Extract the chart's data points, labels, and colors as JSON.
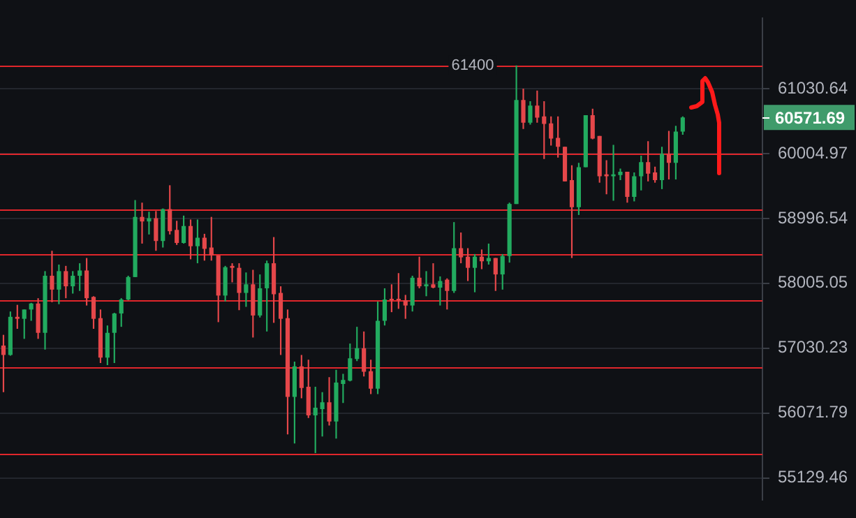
{
  "chart_data": {
    "type": "candlestick",
    "categories": [
      null,
      null,
      null,
      null,
      null,
      null,
      null,
      null,
      null,
      null,
      null,
      null,
      null,
      null,
      null,
      null,
      null,
      null,
      null,
      null,
      null,
      null,
      null,
      null,
      null,
      null,
      null,
      null,
      null,
      null,
      null,
      null,
      null,
      null,
      null,
      null,
      null,
      null,
      null,
      null,
      null,
      null,
      null,
      null,
      null,
      null,
      null,
      null,
      null,
      null,
      null,
      null,
      null,
      null,
      null,
      null,
      null,
      null,
      null,
      null,
      null,
      null,
      null,
      null,
      null,
      null,
      null,
      null,
      null,
      null,
      null,
      null,
      null,
      null,
      null,
      null,
      null,
      null,
      null,
      null,
      null,
      null,
      null,
      null,
      null,
      null,
      null,
      null,
      null,
      null,
      null,
      null,
      null,
      null,
      null,
      null,
      null,
      null,
      null,
      null,
      null,
      null,
      null,
      null,
      null,
      null,
      null,
      null,
      null,
      null
    ],
    "ohlc": [
      [
        57070,
        57230,
        56380,
        56930
      ],
      [
        56930,
        57580,
        56920,
        57500
      ],
      [
        57500,
        57680,
        57320,
        57470
      ],
      [
        57470,
        57610,
        57170,
        57610
      ],
      [
        57610,
        57710,
        57440,
        57700
      ],
      [
        57700,
        57780,
        57170,
        57260
      ],
      [
        57260,
        58190,
        57010,
        58120
      ],
      [
        58120,
        58500,
        57720,
        57910
      ],
      [
        57910,
        58290,
        57690,
        58190
      ],
      [
        58190,
        58270,
        57780,
        57960
      ],
      [
        57960,
        58190,
        57850,
        58120
      ],
      [
        58120,
        58310,
        57890,
        58200
      ],
      [
        58200,
        58390,
        57670,
        57780
      ],
      [
        57800,
        57810,
        57320,
        57470
      ],
      [
        57480,
        57610,
        56810,
        56890
      ],
      [
        56890,
        57370,
        56780,
        57260
      ],
      [
        57260,
        57560,
        56810,
        57550
      ],
      [
        57550,
        57780,
        57350,
        57760
      ],
      [
        57760,
        58120,
        57750,
        58100
      ],
      [
        58100,
        59280,
        58100,
        59020
      ],
      [
        59020,
        59240,
        58610,
        58950
      ],
      [
        58950,
        59100,
        58750,
        59000
      ],
      [
        59000,
        59110,
        58500,
        58650
      ],
      [
        58650,
        59150,
        58550,
        59140
      ],
      [
        59140,
        59510,
        58750,
        58800
      ],
      [
        58820,
        58960,
        58590,
        58620
      ],
      [
        58620,
        59040,
        58610,
        58880
      ],
      [
        58880,
        58980,
        58370,
        58570
      ],
      [
        58570,
        58980,
        58310,
        58700
      ],
      [
        58700,
        58760,
        58350,
        58530
      ],
      [
        58550,
        59020,
        58350,
        58430
      ],
      [
        58430,
        58430,
        57420,
        57820
      ],
      [
        57820,
        58270,
        57730,
        58250
      ],
      [
        58270,
        58310,
        58020,
        58240
      ],
      [
        58240,
        58310,
        57600,
        57860
      ],
      [
        57860,
        58170,
        57650,
        57990
      ],
      [
        57990,
        58210,
        57190,
        57520
      ],
      [
        57520,
        58140,
        57490,
        57930
      ],
      [
        57930,
        58350,
        57280,
        58310
      ],
      [
        58310,
        58710,
        57410,
        57840
      ],
      [
        57860,
        57960,
        56930,
        57470
      ],
      [
        57480,
        57610,
        55760,
        56310
      ],
      [
        56310,
        56830,
        55630,
        56760
      ],
      [
        56760,
        56930,
        56290,
        56440
      ],
      [
        56460,
        56860,
        56000,
        56040
      ],
      [
        56040,
        56460,
        55490,
        56150
      ],
      [
        56130,
        56380,
        55730,
        56230
      ],
      [
        56230,
        56600,
        55890,
        55950
      ],
      [
        55950,
        56710,
        55700,
        56520
      ],
      [
        56500,
        56650,
        56220,
        56560
      ],
      [
        56550,
        57100,
        56540,
        56880
      ],
      [
        56870,
        57350,
        56840,
        57030
      ],
      [
        57030,
        57280,
        56610,
        56680
      ],
      [
        56690,
        56860,
        56350,
        56430
      ],
      [
        56430,
        57730,
        56350,
        57440
      ],
      [
        57440,
        57930,
        57370,
        57760
      ],
      [
        57770,
        57990,
        57570,
        57750
      ],
      [
        57770,
        58160,
        57620,
        57750
      ],
      [
        57750,
        57830,
        57470,
        57670
      ],
      [
        57670,
        58120,
        57580,
        58090
      ],
      [
        58090,
        58410,
        57930,
        57960
      ],
      [
        57960,
        58190,
        57810,
        57990
      ],
      [
        57990,
        58310,
        57930,
        57940
      ],
      [
        57940,
        58110,
        57670,
        58040
      ],
      [
        58060,
        58080,
        57610,
        57890
      ],
      [
        57890,
        58940,
        57860,
        58540
      ],
      [
        58540,
        58780,
        58310,
        58400
      ],
      [
        58410,
        58540,
        58040,
        58240
      ],
      [
        58240,
        58450,
        57870,
        58410
      ],
      [
        58410,
        58520,
        58220,
        58340
      ],
      [
        58340,
        58610,
        58290,
        58390
      ],
      [
        58390,
        58390,
        57890,
        58140
      ],
      [
        58140,
        58450,
        57910,
        58420
      ],
      [
        58420,
        59240,
        58320,
        59220
      ],
      [
        59220,
        61400,
        59220,
        60850
      ],
      [
        60850,
        61030,
        60390,
        60490
      ],
      [
        60490,
        60830,
        60460,
        60760
      ],
      [
        60760,
        61000,
        60490,
        60570
      ],
      [
        60590,
        60830,
        59920,
        60470
      ],
      [
        60480,
        60590,
        60130,
        60240
      ],
      [
        60250,
        60590,
        59940,
        60110
      ],
      [
        60110,
        60110,
        59570,
        59570
      ],
      [
        59590,
        59820,
        58390,
        59170
      ],
      [
        59170,
        59860,
        59050,
        59790
      ],
      [
        59790,
        60610,
        59790,
        60610
      ],
      [
        60610,
        60710,
        60230,
        60240
      ],
      [
        60280,
        60280,
        59550,
        59650
      ],
      [
        59680,
        59900,
        59370,
        59650
      ],
      [
        59650,
        60140,
        59270,
        59680
      ],
      [
        59670,
        59770,
        59590,
        59720
      ],
      [
        59720,
        59720,
        59240,
        59330
      ],
      [
        59330,
        59710,
        59260,
        59650
      ],
      [
        59650,
        59970,
        59430,
        59870
      ],
      [
        59870,
        60200,
        59570,
        59690
      ],
      [
        59710,
        59800,
        59550,
        59590
      ],
      [
        59590,
        60110,
        59450,
        60000
      ],
      [
        60000,
        60360,
        59600,
        59860
      ],
      [
        59860,
        60440,
        59600,
        60350
      ],
      [
        60350,
        60590,
        60300,
        60571.69
      ],
      null,
      null,
      null,
      null,
      null,
      null,
      null,
      null,
      null,
      null,
      null
    ],
    "colors": [
      "#e5474a",
      "#22ab5f",
      "#e5474a",
      "#22ab5f",
      "#22ab5f",
      "#e5474a",
      "#22ab5f",
      "#e5474a",
      "#22ab5f",
      "#e5474a",
      "#22ab5f",
      "#22ab5f",
      "#e5474a",
      "#e5474a",
      "#e5474a",
      "#22ab5f",
      "#22ab5f",
      "#22ab5f",
      "#22ab5f",
      "#22ab5f",
      "#e5474a",
      "#22ab5f",
      "#e5474a",
      "#22ab5f",
      "#e5474a",
      "#e5474a",
      "#22ab5f",
      "#e5474a",
      "#22ab5f",
      "#e5474a",
      "#e5474a",
      "#e5474a",
      "#22ab5f",
      "#e5474a",
      "#e5474a",
      "#22ab5f",
      "#e5474a",
      "#22ab5f",
      "#22ab5f",
      "#e5474a",
      "#e5474a",
      "#e5474a",
      "#22ab5f",
      "#e5474a",
      "#e5474a",
      "#22ab5f",
      "#22ab5f",
      "#e5474a",
      "#22ab5f",
      "#22ab5f",
      "#22ab5f",
      "#22ab5f",
      "#e5474a",
      "#e5474a",
      "#22ab5f",
      "#22ab5f",
      "#e5474a",
      "#e5474a",
      "#e5474a",
      "#22ab5f",
      "#e5474a",
      "#22ab5f",
      "#e5474a",
      "#22ab5f",
      "#e5474a",
      "#22ab5f",
      "#e5474a",
      "#e5474a",
      "#22ab5f",
      "#e5474a",
      "#22ab5f",
      "#e5474a",
      "#22ab5f",
      "#22ab5f",
      "#22ab5f",
      "#e5474a",
      "#22ab5f",
      "#e5474a",
      "#e5474a",
      "#e5474a",
      "#e5474a",
      "#e5474a",
      "#e5474a",
      "#22ab5f",
      "#22ab5f",
      "#e5474a",
      "#e5474a",
      "#e5474a",
      "#22ab5f",
      "#22ab5f",
      "#e5474a",
      "#22ab5f",
      "#22ab5f",
      "#e5474a",
      "#e5474a",
      "#22ab5f",
      "#e5474a",
      "#22ab5f",
      "#22ab5f",
      null,
      null,
      null,
      null,
      null,
      null,
      null,
      null,
      null,
      null,
      null
    ],
    "log": "y",
    "ylim": [
      54820,
      62160
    ],
    "yticks": [
      55129.46,
      56071.79,
      57030.23,
      58005.05,
      58996.54,
      60004.97,
      61030.64
    ],
    "grid": "y",
    "tick_labels": "y",
    "ref_lines": [
      {
        "axis": "y",
        "value": 61400,
        "label": "61400",
        "color": "#e0262b"
      },
      {
        "axis": "y",
        "value": 60000,
        "color": "#e0262b"
      },
      {
        "axis": "y",
        "value": 59140,
        "color": "#e0262b"
      },
      {
        "axis": "y",
        "value": 58440,
        "color": "#e0262b"
      },
      {
        "axis": "y",
        "value": 57750,
        "color": "#e0262b"
      },
      {
        "axis": "y",
        "value": 56740,
        "color": "#e0262b"
      },
      {
        "axis": "y",
        "value": 55470,
        "color": "#e0262b"
      }
    ],
    "annotations": [
      "60571.69"
    ]
  }
}
